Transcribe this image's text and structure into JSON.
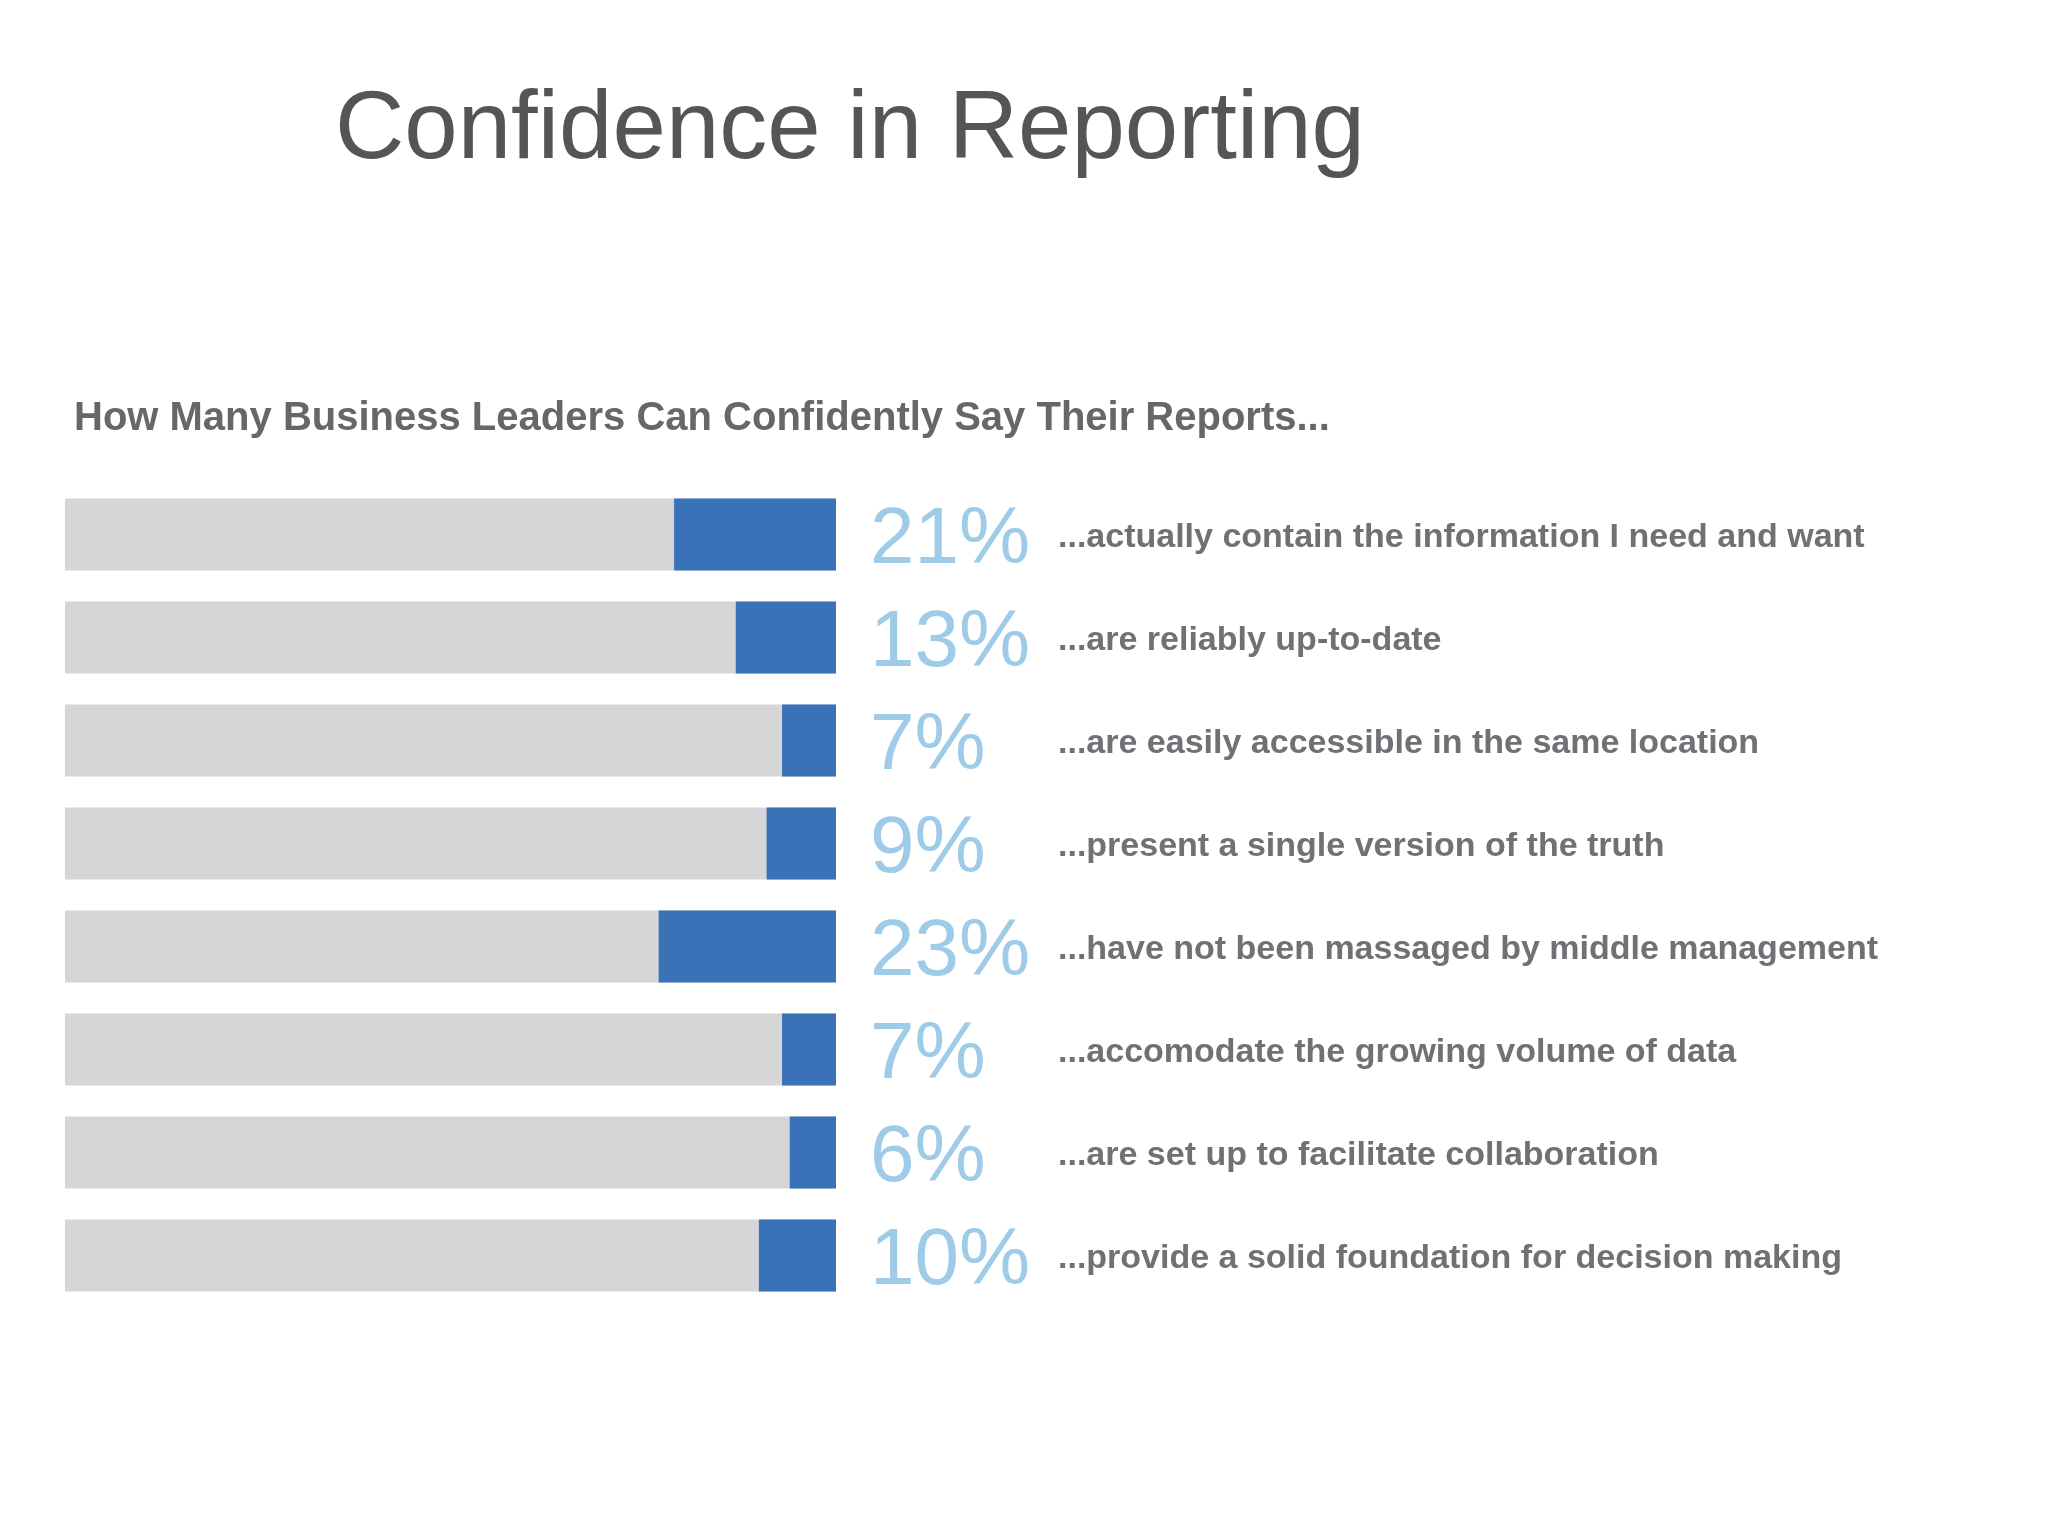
{
  "chart_data": {
    "type": "bar",
    "title": "Confidence in Reporting",
    "subtitle": "How Many Business Leaders Can Confidently Say Their Reports...",
    "orientation": "horizontal",
    "categories": [
      "...actually contain the information I need and want",
      "...are reliably up-to-date",
      "...are easily accessible in the same location",
      "...present a single version of the truth",
      "...have not been massaged by middle management",
      "...accomodate the growing volume of data",
      "...are set up to facilitate collaboration",
      "...provide a solid foundation for decision making"
    ],
    "values": [
      21,
      13,
      7,
      9,
      23,
      7,
      6,
      10
    ],
    "value_labels": [
      "21%",
      "13%",
      "7%",
      "9%",
      "23%",
      "7%",
      "6%",
      "10%"
    ],
    "color": "#3a72b8",
    "xlim": [
      100,
      0
    ],
    "tick_labels": "y"
  }
}
